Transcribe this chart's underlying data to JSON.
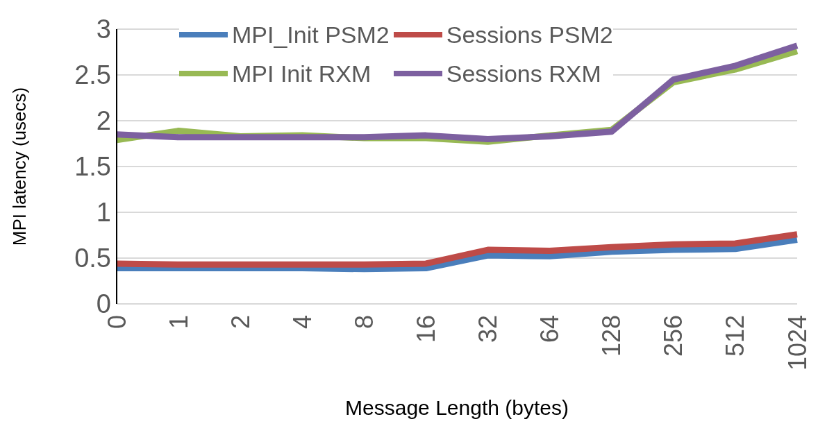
{
  "chart_data": {
    "type": "line",
    "xlabel": "Message Length (bytes)",
    "ylabel": "MPI latency (usecs)",
    "categories": [
      "0",
      "1",
      "2",
      "4",
      "8",
      "16",
      "32",
      "64",
      "128",
      "256",
      "512",
      "1024"
    ],
    "series": [
      {
        "name": "MPI_Init PSM2",
        "color": "#4a7ebb",
        "values": [
          0.39,
          0.39,
          0.39,
          0.39,
          0.38,
          0.39,
          0.53,
          0.52,
          0.57,
          0.59,
          0.6,
          0.7
        ]
      },
      {
        "name": "Sessions PSM2",
        "color": "#be4b48",
        "values": [
          0.44,
          0.43,
          0.43,
          0.43,
          0.43,
          0.44,
          0.59,
          0.58,
          0.62,
          0.65,
          0.66,
          0.76
        ]
      },
      {
        "name": "MPI Init RXM",
        "color": "#98b954",
        "values": [
          1.79,
          1.89,
          1.83,
          1.84,
          1.81,
          1.81,
          1.77,
          1.84,
          1.9,
          2.42,
          2.56,
          2.76
        ]
      },
      {
        "name": "Sessions RXM",
        "color": "#7d60a0",
        "values": [
          1.85,
          1.82,
          1.82,
          1.82,
          1.82,
          1.84,
          1.8,
          1.83,
          1.88,
          2.45,
          2.6,
          2.82
        ]
      }
    ],
    "ylim": [
      0,
      3
    ],
    "yticks": [
      0,
      0.5,
      1,
      1.5,
      2,
      2.5,
      3
    ],
    "grid": "y",
    "legend": "top",
    "marker": "none",
    "line_style": "solid"
  }
}
